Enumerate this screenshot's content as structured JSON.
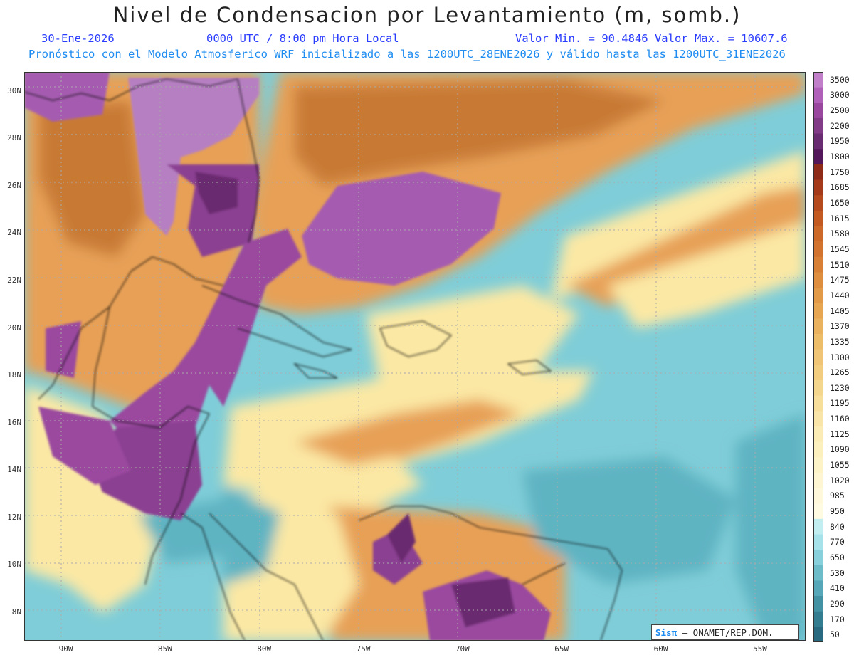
{
  "title": "Nivel de Condensacion por Levantamiento (m, somb.)",
  "info": {
    "date": "30-Ene-2026",
    "time": "0000 UTC / 8:00 pm Hora Local",
    "minmax": "Valor Min. = 90.4846  Valor Max. = 10607.6",
    "forecast": "Pronóstico con el Modelo Atmosferico WRF inicializado a las 1200UTC_28ENE2026 y válido hasta las  1200UTC_31ENE2026"
  },
  "axes": {
    "lat_labels": [
      "30N",
      "28N",
      "26N",
      "24N",
      "22N",
      "20N",
      "18N",
      "16N",
      "14N",
      "12N",
      "10N",
      "8N"
    ],
    "lon_labels": [
      "90W",
      "85W",
      "80W",
      "75W",
      "70W",
      "65W",
      "60W",
      "55W"
    ],
    "lat_range": [
      6.8,
      30.8
    ],
    "lon_range": [
      -92.1,
      -52.7
    ]
  },
  "colorbar": {
    "labels": [
      "3500",
      "3000",
      "2500",
      "2200",
      "1950",
      "1800",
      "1750",
      "1685",
      "1650",
      "1615",
      "1580",
      "1545",
      "1510",
      "1475",
      "1440",
      "1405",
      "1370",
      "1335",
      "1300",
      "1265",
      "1230",
      "1195",
      "1160",
      "1125",
      "1090",
      "1055",
      "1020",
      "985",
      "950",
      "840",
      "770",
      "650",
      "530",
      "410",
      "290",
      "170",
      "50"
    ],
    "colors": [
      "#c07fc8",
      "#b060b8",
      "#9a489f",
      "#823b87",
      "#6a2c70",
      "#52185a",
      "#8e2a18",
      "#a43a1a",
      "#b54a1e",
      "#c25a22",
      "#cc6828",
      "#d27430",
      "#d88036",
      "#de8e3e",
      "#e29a48",
      "#e6a652",
      "#eab25e",
      "#eebd6a",
      "#f0c676",
      "#f2cd80",
      "#f5d68d",
      "#f7de9a",
      "#f9e5a8",
      "#fbebb4",
      "#fcf0bf",
      "#fdf3c8",
      "#fef6d2",
      "#fff8da",
      "#fffae2",
      "#c2eef2",
      "#a6e2ea",
      "#88d0dc",
      "#6cbcca",
      "#56a8b8",
      "#4392a4",
      "#347c90",
      "#2a6a80"
    ],
    "data_range": [
      50,
      3500
    ]
  },
  "colors": {
    "land_purple": "#a55bb0",
    "land_dark_purple": "#6a2c70",
    "ocean_cyan": "#7fcdd8",
    "ocean_teal": "#5fb4c2",
    "yellow": "#fbe8a4",
    "orange": "#e7a057",
    "brown": "#c87a34"
  },
  "credit": {
    "brand": "Sisπ",
    "text": " – ONAMET/REP.DOM."
  }
}
